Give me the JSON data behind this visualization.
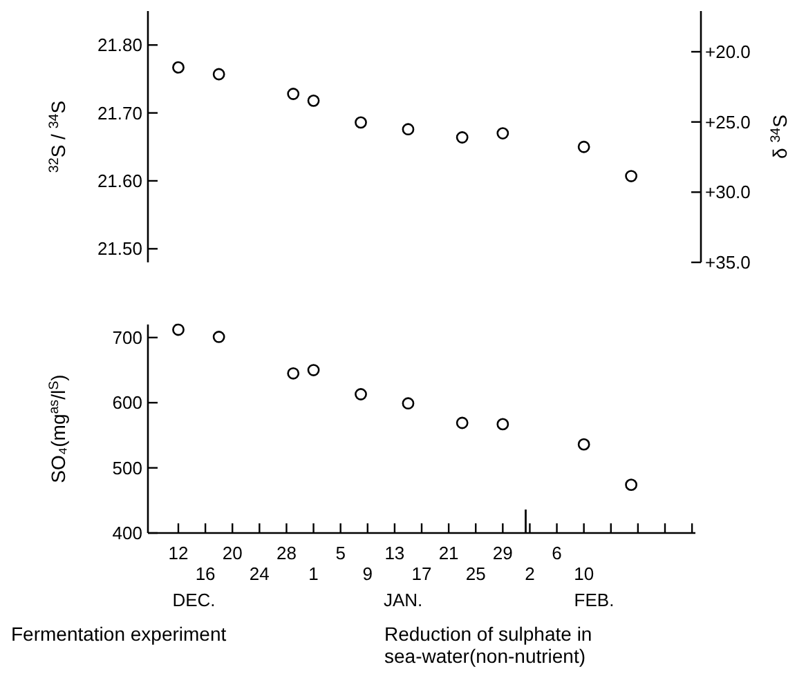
{
  "chart_data": [
    {
      "type": "scatter",
      "ylabel": "$^{32}$S / $^{34}$S",
      "y2label": "δ $^{34}$S",
      "marker": "circle",
      "grid": false,
      "tick_labels": "y",
      "categories": [
        null,
        null,
        null,
        null,
        "12",
        null,
        null,
        null,
        "16",
        null,
        null,
        null,
        "20",
        null,
        null,
        null,
        "24",
        null,
        null,
        null,
        "28",
        null,
        null,
        null,
        "1",
        null,
        null,
        null,
        "5",
        null,
        null,
        null,
        "9",
        null,
        null,
        null,
        "13",
        null,
        null,
        null,
        "17",
        null,
        null,
        null,
        "21",
        null,
        null,
        null,
        "25",
        null,
        null,
        null,
        "29",
        null,
        null,
        null,
        "2",
        null,
        null,
        null,
        "6",
        null,
        null,
        null,
        "10",
        null,
        null,
        null,
        null,
        null,
        null,
        null,
        null,
        null,
        null,
        null,
        null,
        null,
        null,
        null,
        null
      ],
      "ylim": [
        21.48,
        21.85
      ],
      "yticks": [
        {
          "value": 21.5,
          "label": "21.50"
        },
        {
          "value": 21.6,
          "label": "21.60"
        },
        {
          "value": 21.7,
          "label": "21.70"
        },
        {
          "value": 21.8,
          "label": "21.80"
        }
      ],
      "y2lim": [
        35.0,
        17.1
      ],
      "y2ticks": [
        {
          "value": 20,
          "label": "+20.0"
        },
        {
          "value": 25,
          "label": "+25.0"
        },
        {
          "value": 30,
          "label": "+30.0"
        },
        {
          "value": 35,
          "label": "+35.0"
        }
      ],
      "series": [
        {
          "color": "#000000",
          "values": [
            null,
            null,
            null,
            null,
            21.767,
            null,
            null,
            null,
            null,
            null,
            21.757,
            null,
            null,
            null,
            null,
            null,
            null,
            null,
            null,
            null,
            null,
            21.728,
            null,
            null,
            21.718,
            null,
            null,
            null,
            null,
            null,
            null,
            21.686,
            null,
            null,
            null,
            null,
            null,
            null,
            21.676,
            null,
            null,
            null,
            null,
            null,
            null,
            null,
            21.664,
            null,
            null,
            null,
            null,
            null,
            21.67,
            null,
            null,
            null,
            null,
            null,
            null,
            null,
            null,
            null,
            null,
            null,
            21.65,
            null,
            null,
            null,
            null,
            null,
            null,
            21.607,
            null,
            null,
            null,
            null,
            null,
            null,
            null,
            null,
            null
          ]
        }
      ]
    },
    {
      "type": "scatter",
      "ylabel": "SO₄(mg$^{as}$/l$^{S}$)",
      "marker": "circle",
      "grid": false,
      "categories": [
        null,
        null,
        null,
        null,
        "12",
        null,
        null,
        null,
        "16",
        null,
        null,
        null,
        "20",
        null,
        null,
        null,
        "24",
        null,
        null,
        null,
        "28",
        null,
        null,
        null,
        "1",
        null,
        null,
        null,
        "5",
        null,
        null,
        null,
        "9",
        null,
        null,
        null,
        "13",
        null,
        null,
        null,
        "17",
        null,
        null,
        null,
        "21",
        null,
        null,
        null,
        "25",
        null,
        null,
        null,
        "29",
        null,
        null,
        null,
        "2",
        null,
        null,
        null,
        "6",
        null,
        null,
        null,
        "10",
        null,
        null,
        null,
        null,
        null,
        null,
        null,
        null,
        null,
        null,
        null,
        null,
        null,
        null,
        null,
        null
      ],
      "ylim": [
        400,
        720
      ],
      "yticks": [
        400,
        500,
        600,
        700
      ],
      "annotations": [
        "DEC.",
        "JAN.",
        "FEB.",
        "Fermentation experiment",
        "Reduction of sulphate in sea-water(non-nutrient)"
      ],
      "series": [
        {
          "color": "#000000",
          "values": [
            null,
            null,
            null,
            null,
            712,
            null,
            null,
            null,
            null,
            null,
            701,
            null,
            null,
            null,
            null,
            null,
            null,
            null,
            null,
            null,
            null,
            645,
            null,
            null,
            650,
            null,
            null,
            null,
            null,
            null,
            null,
            613,
            null,
            null,
            null,
            null,
            null,
            null,
            599,
            null,
            null,
            null,
            null,
            null,
            null,
            null,
            569,
            null,
            null,
            null,
            null,
            null,
            567,
            null,
            null,
            null,
            null,
            null,
            null,
            null,
            null,
            null,
            null,
            null,
            536,
            null,
            null,
            null,
            null,
            null,
            null,
            474,
            null,
            null,
            null,
            null,
            null,
            null,
            null,
            null,
            null
          ]
        }
      ]
    }
  ]
}
